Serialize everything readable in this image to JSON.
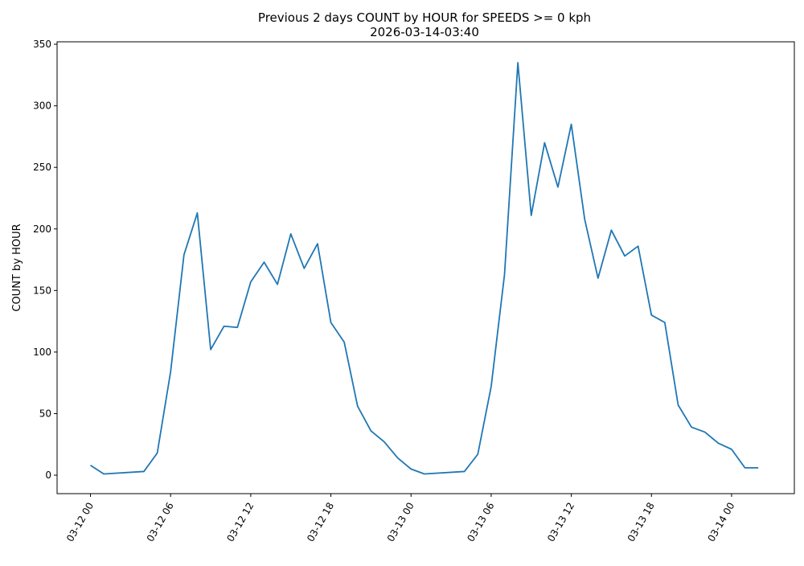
{
  "chart_data": {
    "type": "line",
    "title": "Previous 2 days COUNT by HOUR for SPEEDS >= 0 kph",
    "subtitle": "2026-03-14-03:40",
    "xlabel": "",
    "ylabel": "COUNT by HOUR",
    "x_unit": "hours since 03-12 00",
    "xlim": [
      -2.5,
      52.7
    ],
    "ylim": [
      -15,
      352
    ],
    "grid": false,
    "color": "#1f77b4",
    "x_ticks": [
      0,
      6,
      12,
      18,
      24,
      30,
      36,
      42,
      48
    ],
    "x_tick_labels": [
      "03-12 00",
      "03-12 06",
      "03-12 12",
      "03-12 18",
      "03-13 00",
      "03-13 06",
      "03-13 12",
      "03-13 18",
      "03-14 00"
    ],
    "y_ticks": [
      0,
      50,
      100,
      150,
      200,
      250,
      300,
      350
    ],
    "y_tick_labels": [
      "0",
      "50",
      "100",
      "150",
      "200",
      "250",
      "300",
      "350"
    ],
    "series": [
      {
        "name": "COUNT by HOUR",
        "x": [
          0,
          1,
          4,
          5,
          6,
          7,
          8,
          9,
          10,
          11,
          12,
          13,
          14,
          15,
          16,
          17,
          18,
          19,
          20,
          21,
          22,
          23,
          24,
          25,
          28,
          29,
          30,
          31,
          32,
          33,
          34,
          35,
          36,
          37,
          38,
          39,
          40,
          41,
          42,
          43,
          44,
          45,
          46,
          47,
          48,
          49,
          50
        ],
        "values": [
          8,
          1,
          3,
          18,
          84,
          179,
          213,
          102,
          121,
          120,
          157,
          173,
          155,
          196,
          168,
          188,
          124,
          108,
          56,
          36,
          27,
          14,
          5,
          1,
          3,
          17,
          72,
          163,
          335,
          211,
          270,
          234,
          285,
          208,
          160,
          199,
          178,
          186,
          130,
          124,
          57,
          39,
          35,
          26,
          21,
          6,
          6
        ]
      }
    ]
  }
}
